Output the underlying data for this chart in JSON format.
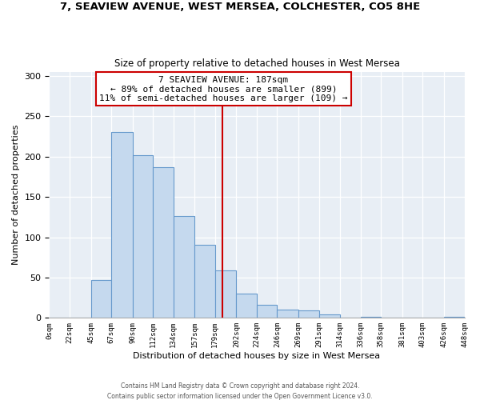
{
  "title1": "7, SEAVIEW AVENUE, WEST MERSEA, COLCHESTER, CO5 8HE",
  "title2": "Size of property relative to detached houses in West Mersea",
  "xlabel": "Distribution of detached houses by size in West Mersea",
  "ylabel": "Number of detached properties",
  "bar_color": "#c5d9ee",
  "bar_edge_color": "#6699cc",
  "property_line_x": 187,
  "property_line_color": "#cc0000",
  "annotation_title": "7 SEAVIEW AVENUE: 187sqm",
  "annotation_line1": "← 89% of detached houses are smaller (899)",
  "annotation_line2": "11% of semi-detached houses are larger (109) →",
  "annotation_box_color": "white",
  "annotation_box_edge": "#cc0000",
  "footnote1": "Contains HM Land Registry data © Crown copyright and database right 2024.",
  "footnote2": "Contains public sector information licensed under the Open Government Licence v3.0.",
  "bin_edges": [
    0,
    22,
    45,
    67,
    90,
    112,
    134,
    157,
    179,
    202,
    224,
    246,
    269,
    291,
    314,
    336,
    358,
    381,
    403,
    426,
    448
  ],
  "bin_labels": [
    "0sqm",
    "22sqm",
    "45sqm",
    "67sqm",
    "90sqm",
    "112sqm",
    "134sqm",
    "157sqm",
    "179sqm",
    "202sqm",
    "224sqm",
    "246sqm",
    "269sqm",
    "291sqm",
    "314sqm",
    "336sqm",
    "358sqm",
    "381sqm",
    "403sqm",
    "426sqm",
    "448sqm"
  ],
  "counts": [
    0,
    0,
    47,
    231,
    202,
    187,
    126,
    91,
    59,
    30,
    16,
    10,
    9,
    4,
    0,
    1,
    0,
    0,
    0,
    1
  ],
  "ylim": [
    0,
    305
  ],
  "xlim": [
    0,
    448
  ],
  "bg_color": "#e8eef5"
}
